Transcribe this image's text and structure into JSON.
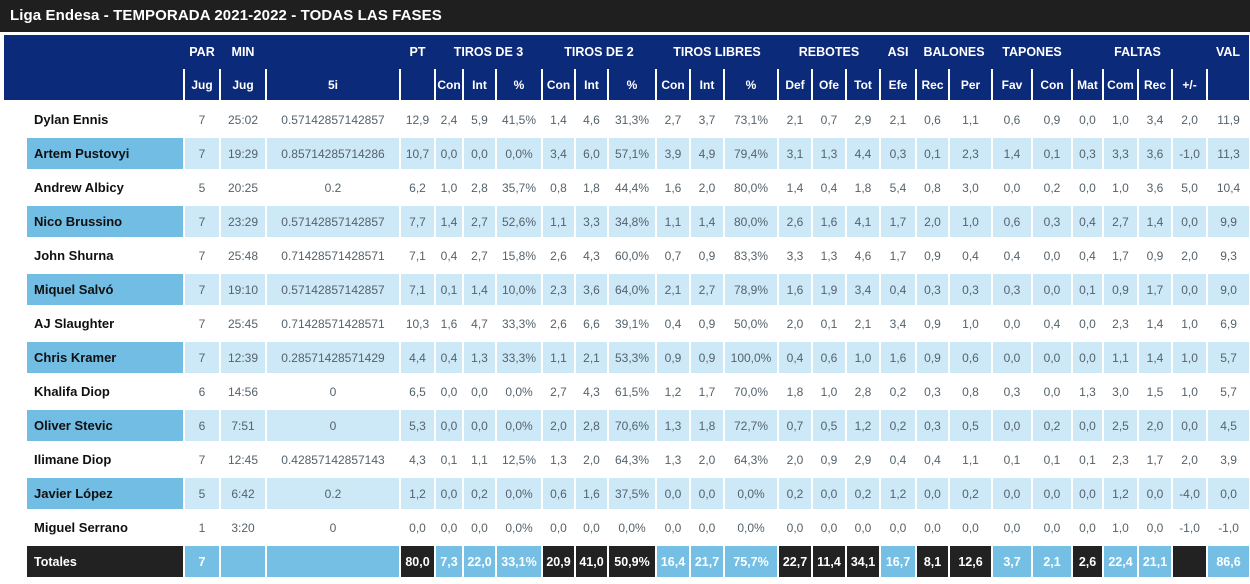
{
  "title": "Liga Endesa - TEMPORADA 2021-2022 - TODAS LAS FASES",
  "colors": {
    "title_bar": "#1f1f1f",
    "header_navy": "#0c2a7a",
    "row_light_blue": "#cde9f8",
    "name_medium_blue": "#72bde3",
    "totals_dark": "#222222",
    "totals_blue": "#75bfe5"
  },
  "table": {
    "groups": [
      {
        "label": "",
        "span": 2
      },
      {
        "label": "PAR",
        "span": 1
      },
      {
        "label": "MIN",
        "span": 1
      },
      {
        "label": "",
        "span": 1
      },
      {
        "label": "PT",
        "span": 1
      },
      {
        "label": "TIROS DE 3",
        "span": 3
      },
      {
        "label": "TIROS DE 2",
        "span": 3
      },
      {
        "label": "TIROS LIBRES",
        "span": 3
      },
      {
        "label": "REBOTES",
        "span": 3
      },
      {
        "label": "ASI",
        "span": 1
      },
      {
        "label": "BALONES",
        "span": 2
      },
      {
        "label": "TAPONES",
        "span": 2
      },
      {
        "label": "",
        "span": 1
      },
      {
        "label": "FALTAS",
        "span": 2
      },
      {
        "label": "",
        "span": 1
      },
      {
        "label": "VAL",
        "span": 1
      }
    ],
    "subheaders": [
      "Jug",
      "Jug",
      "5i",
      "",
      "Con",
      "Int",
      "%",
      "Con",
      "Int",
      "%",
      "Con",
      "Int",
      "%",
      "Def",
      "Ofe",
      "Tot",
      "Efe",
      "Rec",
      "Per",
      "Fav",
      "Con",
      "Mat",
      "Com",
      "Rec",
      "+/-",
      ""
    ],
    "rows": [
      {
        "name": "Dylan Ennis",
        "values": [
          "7",
          "25:02",
          "0.57142857142857",
          "12,9",
          "2,4",
          "5,9",
          "41,5%",
          "1,4",
          "4,6",
          "31,3%",
          "2,7",
          "3,7",
          "73,1%",
          "2,1",
          "0,7",
          "2,9",
          "2,1",
          "0,6",
          "1,1",
          "0,6",
          "0,9",
          "0,0",
          "1,0",
          "3,4",
          "2,0",
          "11,9"
        ]
      },
      {
        "name": "Artem Pustovyi",
        "values": [
          "7",
          "19:29",
          "0.85714285714286",
          "10,7",
          "0,0",
          "0,0",
          "0,0%",
          "3,4",
          "6,0",
          "57,1%",
          "3,9",
          "4,9",
          "79,4%",
          "3,1",
          "1,3",
          "4,4",
          "0,3",
          "0,1",
          "2,3",
          "1,4",
          "0,1",
          "0,3",
          "3,3",
          "3,6",
          "-1,0",
          "11,3"
        ]
      },
      {
        "name": "Andrew Albicy",
        "values": [
          "5",
          "20:25",
          "0.2",
          "6,2",
          "1,0",
          "2,8",
          "35,7%",
          "0,8",
          "1,8",
          "44,4%",
          "1,6",
          "2,0",
          "80,0%",
          "1,4",
          "0,4",
          "1,8",
          "5,4",
          "0,8",
          "3,0",
          "0,0",
          "0,2",
          "0,0",
          "1,0",
          "3,6",
          "5,0",
          "10,4"
        ]
      },
      {
        "name": "Nico Brussino",
        "values": [
          "7",
          "23:29",
          "0.57142857142857",
          "7,7",
          "1,4",
          "2,7",
          "52,6%",
          "1,1",
          "3,3",
          "34,8%",
          "1,1",
          "1,4",
          "80,0%",
          "2,6",
          "1,6",
          "4,1",
          "1,7",
          "2,0",
          "1,0",
          "0,6",
          "0,3",
          "0,4",
          "2,7",
          "1,4",
          "0,0",
          "9,9"
        ]
      },
      {
        "name": "John Shurna",
        "values": [
          "7",
          "25:48",
          "0.71428571428571",
          "7,1",
          "0,4",
          "2,7",
          "15,8%",
          "2,6",
          "4,3",
          "60,0%",
          "0,7",
          "0,9",
          "83,3%",
          "3,3",
          "1,3",
          "4,6",
          "1,7",
          "0,9",
          "0,4",
          "0,4",
          "0,0",
          "0,4",
          "1,7",
          "0,9",
          "2,0",
          "9,3"
        ]
      },
      {
        "name": "Miquel Salvó",
        "values": [
          "7",
          "19:10",
          "0.57142857142857",
          "7,1",
          "0,1",
          "1,4",
          "10,0%",
          "2,3",
          "3,6",
          "64,0%",
          "2,1",
          "2,7",
          "78,9%",
          "1,6",
          "1,9",
          "3,4",
          "0,4",
          "0,3",
          "0,3",
          "0,3",
          "0,0",
          "0,1",
          "0,9",
          "1,7",
          "0,0",
          "9,0"
        ]
      },
      {
        "name": "AJ Slaughter",
        "values": [
          "7",
          "25:45",
          "0.71428571428571",
          "10,3",
          "1,6",
          "4,7",
          "33,3%",
          "2,6",
          "6,6",
          "39,1%",
          "0,4",
          "0,9",
          "50,0%",
          "2,0",
          "0,1",
          "2,1",
          "3,4",
          "0,9",
          "1,0",
          "0,0",
          "0,4",
          "0,0",
          "2,3",
          "1,4",
          "1,0",
          "6,9"
        ]
      },
      {
        "name": "Chris Kramer",
        "values": [
          "7",
          "12:39",
          "0.28571428571429",
          "4,4",
          "0,4",
          "1,3",
          "33,3%",
          "1,1",
          "2,1",
          "53,3%",
          "0,9",
          "0,9",
          "100,0%",
          "0,4",
          "0,6",
          "1,0",
          "1,6",
          "0,9",
          "0,6",
          "0,0",
          "0,0",
          "0,0",
          "1,1",
          "1,4",
          "1,0",
          "5,7"
        ]
      },
      {
        "name": "Khalifa Diop",
        "values": [
          "6",
          "14:56",
          "0",
          "6,5",
          "0,0",
          "0,0",
          "0,0%",
          "2,7",
          "4,3",
          "61,5%",
          "1,2",
          "1,7",
          "70,0%",
          "1,8",
          "1,0",
          "2,8",
          "0,2",
          "0,3",
          "0,8",
          "0,3",
          "0,0",
          "1,3",
          "3,0",
          "1,5",
          "1,0",
          "5,7"
        ]
      },
      {
        "name": "Oliver Stevic",
        "values": [
          "6",
          "7:51",
          "0",
          "5,3",
          "0,0",
          "0,0",
          "0,0%",
          "2,0",
          "2,8",
          "70,6%",
          "1,3",
          "1,8",
          "72,7%",
          "0,7",
          "0,5",
          "1,2",
          "0,2",
          "0,3",
          "0,5",
          "0,0",
          "0,2",
          "0,0",
          "2,5",
          "2,0",
          "0,0",
          "4,5"
        ]
      },
      {
        "name": "Ilimane Diop",
        "values": [
          "7",
          "12:45",
          "0.42857142857143",
          "4,3",
          "0,1",
          "1,1",
          "12,5%",
          "1,3",
          "2,0",
          "64,3%",
          "1,3",
          "2,0",
          "64,3%",
          "2,0",
          "0,9",
          "2,9",
          "0,4",
          "0,4",
          "1,1",
          "0,1",
          "0,1",
          "0,1",
          "2,3",
          "1,7",
          "2,0",
          "3,9"
        ]
      },
      {
        "name": "Javier López",
        "values": [
          "5",
          "6:42",
          "0.2",
          "1,2",
          "0,0",
          "0,2",
          "0,0%",
          "0,6",
          "1,6",
          "37,5%",
          "0,0",
          "0,0",
          "0,0%",
          "0,2",
          "0,0",
          "0,2",
          "1,2",
          "0,0",
          "0,2",
          "0,0",
          "0,0",
          "0,0",
          "1,2",
          "0,0",
          "-4,0",
          "0,0"
        ]
      },
      {
        "name": "Miguel Serrano",
        "values": [
          "1",
          "3:20",
          "0",
          "0,0",
          "0,0",
          "0,0",
          "0,0%",
          "0,0",
          "0,0",
          "0,0%",
          "0,0",
          "0,0",
          "0,0%",
          "0,0",
          "0,0",
          "0,0",
          "0,0",
          "0,0",
          "0,0",
          "0,0",
          "0,0",
          "0,0",
          "1,0",
          "0,0",
          "-1,0",
          "-1,0"
        ]
      }
    ],
    "totals": {
      "label": "Totales",
      "cells": [
        {
          "v": "7",
          "dark": false
        },
        {
          "v": "",
          "dark": false
        },
        {
          "v": "",
          "dark": false
        },
        {
          "v": "80,0",
          "dark": true
        },
        {
          "v": "7,3",
          "dark": false
        },
        {
          "v": "22,0",
          "dark": false
        },
        {
          "v": "33,1%",
          "dark": false
        },
        {
          "v": "20,9",
          "dark": true
        },
        {
          "v": "41,0",
          "dark": true
        },
        {
          "v": "50,9%",
          "dark": true
        },
        {
          "v": "16,4",
          "dark": false
        },
        {
          "v": "21,7",
          "dark": false
        },
        {
          "v": "75,7%",
          "dark": false
        },
        {
          "v": "22,7",
          "dark": true
        },
        {
          "v": "11,4",
          "dark": true
        },
        {
          "v": "34,1",
          "dark": true
        },
        {
          "v": "16,7",
          "dark": false
        },
        {
          "v": "8,1",
          "dark": true
        },
        {
          "v": "12,6",
          "dark": true
        },
        {
          "v": "3,7",
          "dark": false
        },
        {
          "v": "2,1",
          "dark": false
        },
        {
          "v": "2,6",
          "dark": true
        },
        {
          "v": "22,4",
          "dark": false
        },
        {
          "v": "21,1",
          "dark": false
        },
        {
          "v": "",
          "dark": true
        },
        {
          "v": "86,6",
          "dark": false
        }
      ]
    }
  }
}
